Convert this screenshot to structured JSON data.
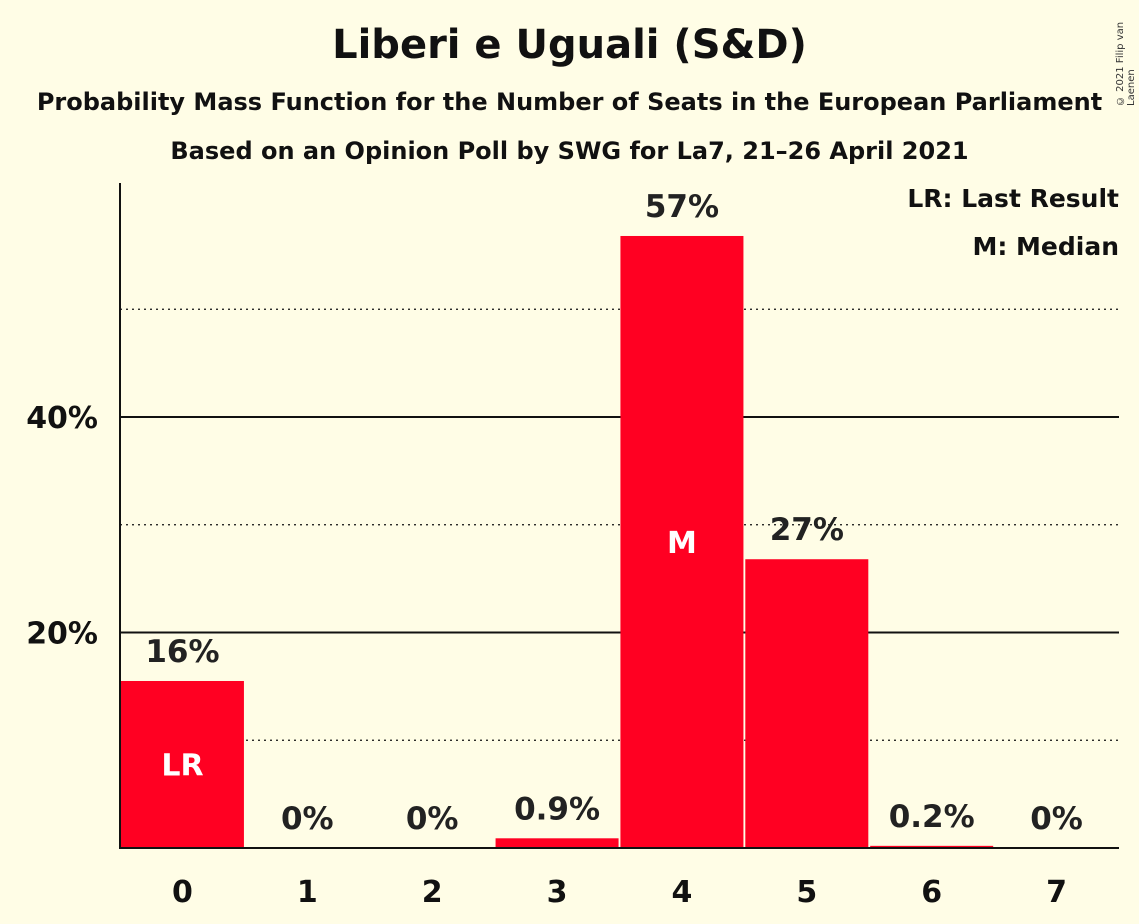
{
  "title": "Liberi e Uguali (S&D)",
  "subtitle": "Probability Mass Function for the Number of Seats in the European Parliament",
  "subtitle2": "Based on an Opinion Poll by SWG for La7, 21–26 April 2021",
  "copyright": "© 2021 Filip van Laenen",
  "legend": {
    "last_result": "LR: Last Result",
    "median": "M: Median"
  },
  "colors": {
    "background": "#fffde6",
    "bar": "#ff0022",
    "text": "#111111"
  },
  "chart_data": {
    "type": "bar",
    "title": "Liberi e Uguali (S&D)",
    "categories": [
      "0",
      "1",
      "2",
      "3",
      "4",
      "5",
      "6",
      "7"
    ],
    "values": [
      15.5,
      0,
      0,
      0.9,
      56.8,
      26.8,
      0.2,
      0
    ],
    "value_labels": [
      "16%",
      "0%",
      "0%",
      "0.9%",
      "57%",
      "27%",
      "0.2%",
      "0%"
    ],
    "in_bar_marks": [
      "LR",
      "",
      "",
      "",
      "M",
      "",
      "",
      ""
    ],
    "ylim": [
      0,
      62
    ],
    "y_tick_values": [
      20,
      40
    ],
    "y_tick_labels": [
      "20%",
      "40%"
    ],
    "minor_gridlines": [
      10,
      30,
      50
    ],
    "xlabel": "",
    "ylabel": "",
    "grid": true,
    "legend_position": "top-right"
  }
}
